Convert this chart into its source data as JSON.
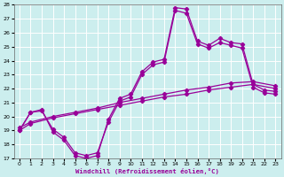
{
  "xlabel": "Windchill (Refroidissement éolien,°C)",
  "bg_color": "#cceeee",
  "line_color": "#990099",
  "grid_color": "#ffffff",
  "xmin": -0.5,
  "xmax": 23.5,
  "ymin": 17,
  "ymax": 28,
  "xticks": [
    0,
    1,
    2,
    3,
    4,
    5,
    6,
    7,
    8,
    9,
    10,
    11,
    12,
    13,
    14,
    15,
    16,
    17,
    18,
    19,
    20,
    21,
    22,
    23
  ],
  "yticks": [
    17,
    18,
    19,
    20,
    21,
    22,
    23,
    24,
    25,
    26,
    27,
    28
  ],
  "curve_x": [
    0,
    1,
    2,
    3,
    4,
    5,
    6,
    7,
    8,
    9,
    10,
    11,
    12,
    13,
    14,
    15,
    16,
    17,
    18,
    19,
    20,
    21,
    22,
    23
  ],
  "curve_y": [
    19.0,
    20.3,
    20.5,
    18.9,
    18.3,
    17.2,
    17.0,
    17.2,
    19.8,
    21.3,
    21.6,
    23.2,
    23.9,
    24.1,
    27.8,
    27.7,
    25.4,
    25.1,
    25.6,
    25.3,
    25.2,
    22.3,
    21.9,
    21.8
  ],
  "line2_x": [
    0,
    1,
    2,
    3,
    4,
    5,
    6,
    7,
    8,
    9,
    10,
    11,
    12,
    13,
    14,
    15,
    16,
    17,
    18,
    19,
    20,
    21,
    22,
    23
  ],
  "line2_y": [
    19.0,
    20.3,
    20.4,
    19.1,
    18.5,
    17.4,
    17.2,
    17.4,
    19.6,
    21.1,
    21.4,
    23.0,
    23.7,
    23.9,
    27.6,
    27.4,
    25.2,
    24.9,
    25.3,
    25.1,
    24.9,
    22.1,
    21.7,
    21.6
  ],
  "line3_x": [
    0,
    1,
    3,
    5,
    7,
    9,
    11,
    13,
    15,
    17,
    19,
    21,
    23
  ],
  "line3_y": [
    19.0,
    19.5,
    19.9,
    20.2,
    20.5,
    20.8,
    21.1,
    21.4,
    21.6,
    21.9,
    22.1,
    22.3,
    22.0
  ],
  "line4_x": [
    0,
    1,
    3,
    5,
    7,
    9,
    11,
    13,
    15,
    17,
    19,
    21,
    23
  ],
  "line4_y": [
    19.2,
    19.6,
    20.0,
    20.3,
    20.6,
    21.0,
    21.3,
    21.6,
    21.9,
    22.1,
    22.4,
    22.5,
    22.2
  ]
}
